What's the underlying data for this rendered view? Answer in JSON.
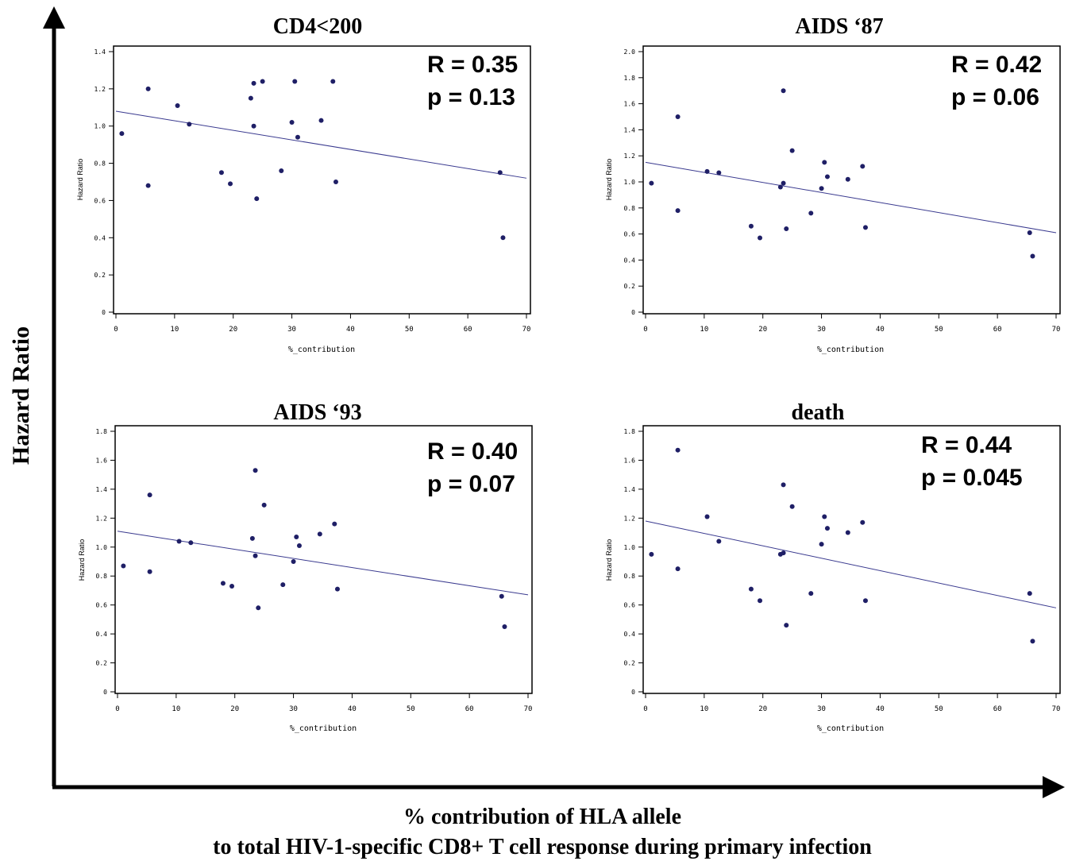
{
  "figure": {
    "ylabel": "Hazard Ratio",
    "xlabel_line1": "% contribution of HLA allele",
    "xlabel_line2": "to total HIV-1-specific CD8+ T cell response during primary infection"
  },
  "chart_data": [
    {
      "type": "scatter",
      "title": "CD4<200",
      "xlabel": "%_contribution",
      "ylabel": "Hazard Ratio",
      "xlim": [
        0,
        70
      ],
      "ylim": [
        0,
        1.4
      ],
      "xticks": [
        0,
        10,
        20,
        30,
        40,
        50,
        60,
        70
      ],
      "yticks": [
        0,
        0.2,
        0.4,
        0.6,
        0.8,
        1.0,
        1.2,
        1.4
      ],
      "ytick_labels": [
        "0",
        "0.2",
        "0.4",
        "0.6",
        "0.8",
        "1.0",
        "1.2",
        "1.4"
      ],
      "stats": {
        "r": "R = 0.35",
        "p": "p = 0.13"
      },
      "fit_line": [
        [
          0,
          1.08
        ],
        [
          70,
          0.72
        ]
      ],
      "points": [
        [
          1,
          0.96
        ],
        [
          5.5,
          1.2
        ],
        [
          5.5,
          0.68
        ],
        [
          10.5,
          1.11
        ],
        [
          12.5,
          1.01
        ],
        [
          18,
          0.75
        ],
        [
          19.5,
          0.69
        ],
        [
          23,
          1.15
        ],
        [
          23.5,
          1.23
        ],
        [
          23.5,
          1.0
        ],
        [
          24,
          0.61
        ],
        [
          25,
          1.24
        ],
        [
          28.2,
          0.76
        ],
        [
          30,
          1.02
        ],
        [
          30.5,
          1.24
        ],
        [
          31,
          0.94
        ],
        [
          35,
          1.03
        ],
        [
          37,
          1.24
        ],
        [
          37.5,
          0.7
        ],
        [
          65.5,
          0.75
        ],
        [
          66,
          0.4
        ]
      ]
    },
    {
      "type": "scatter",
      "title": "AIDS ‘87",
      "xlabel": "%_contribution",
      "ylabel": "Hazard Ratio",
      "xlim": [
        0,
        70
      ],
      "ylim": [
        0,
        2.0
      ],
      "xticks": [
        0,
        10,
        20,
        30,
        40,
        50,
        60,
        70
      ],
      "yticks": [
        0,
        0.2,
        0.4,
        0.6,
        0.8,
        1.0,
        1.2,
        1.4,
        1.6,
        1.8,
        2.0
      ],
      "ytick_labels": [
        "0",
        "0.2",
        "0.4",
        "0.6",
        "0.8",
        "1.0",
        "1.2",
        "1.4",
        "1.6",
        "1.8",
        "2.0"
      ],
      "stats": {
        "r": "R = 0.42",
        "p": "p = 0.06"
      },
      "fit_line": [
        [
          0,
          1.15
        ],
        [
          70,
          0.61
        ]
      ],
      "points": [
        [
          1,
          0.99
        ],
        [
          5.5,
          1.5
        ],
        [
          5.5,
          0.78
        ],
        [
          10.5,
          1.08
        ],
        [
          12.5,
          1.07
        ],
        [
          18,
          0.66
        ],
        [
          19.5,
          0.57
        ],
        [
          23,
          0.96
        ],
        [
          23.5,
          0.99
        ],
        [
          23.5,
          1.7
        ],
        [
          24,
          0.64
        ],
        [
          25,
          1.24
        ],
        [
          28.2,
          0.76
        ],
        [
          30,
          0.95
        ],
        [
          30.5,
          1.15
        ],
        [
          31,
          1.04
        ],
        [
          34.5,
          1.02
        ],
        [
          37,
          1.12
        ],
        [
          37.5,
          0.65
        ],
        [
          65.5,
          0.61
        ],
        [
          66,
          0.43
        ]
      ]
    },
    {
      "type": "scatter",
      "title": "AIDS ‘93",
      "xlabel": "%_contribution",
      "ylabel": "Hazard Ratio",
      "xlim": [
        0,
        70
      ],
      "ylim": [
        0,
        1.8
      ],
      "xticks": [
        0,
        10,
        20,
        30,
        40,
        50,
        60,
        70
      ],
      "yticks": [
        0,
        0.2,
        0.4,
        0.6,
        0.8,
        1.0,
        1.2,
        1.4,
        1.6,
        1.8
      ],
      "ytick_labels": [
        "0",
        "0.2",
        "0.4",
        "0.6",
        "0.8",
        "1.0",
        "1.2",
        "1.4",
        "1.6",
        "1.8"
      ],
      "stats": {
        "r": "R = 0.40",
        "p": "p = 0.07"
      },
      "fit_line": [
        [
          0,
          1.11
        ],
        [
          70,
          0.67
        ]
      ],
      "points": [
        [
          1,
          0.87
        ],
        [
          5.5,
          1.36
        ],
        [
          5.5,
          0.83
        ],
        [
          10.5,
          1.04
        ],
        [
          12.5,
          1.03
        ],
        [
          18,
          0.75
        ],
        [
          19.5,
          0.73
        ],
        [
          23,
          1.06
        ],
        [
          23.5,
          0.94
        ],
        [
          23.5,
          1.53
        ],
        [
          24,
          0.58
        ],
        [
          25,
          1.29
        ],
        [
          28.2,
          0.74
        ],
        [
          30,
          0.9
        ],
        [
          30.5,
          1.07
        ],
        [
          31,
          1.01
        ],
        [
          34.5,
          1.09
        ],
        [
          37,
          1.16
        ],
        [
          37.5,
          0.71
        ],
        [
          65.5,
          0.66
        ],
        [
          66,
          0.45
        ]
      ]
    },
    {
      "type": "scatter",
      "title": "death",
      "xlabel": "%_contribution",
      "ylabel": "Hazard Ratio",
      "xlim": [
        0,
        70
      ],
      "ylim": [
        0,
        1.8
      ],
      "xticks": [
        0,
        10,
        20,
        30,
        40,
        50,
        60,
        70
      ],
      "yticks": [
        0,
        0.2,
        0.4,
        0.6,
        0.8,
        1.0,
        1.2,
        1.4,
        1.6,
        1.8
      ],
      "ytick_labels": [
        "0",
        "0.2",
        "0.4",
        "0.6",
        "0.8",
        "1.0",
        "1.2",
        "1.4",
        "1.6",
        "1.8"
      ],
      "stats": {
        "r": "R = 0.44",
        "p": "p = 0.045"
      },
      "fit_line": [
        [
          0,
          1.18
        ],
        [
          70,
          0.58
        ]
      ],
      "points": [
        [
          1,
          0.95
        ],
        [
          5.5,
          1.67
        ],
        [
          5.5,
          0.85
        ],
        [
          10.5,
          1.21
        ],
        [
          12.5,
          1.04
        ],
        [
          18,
          0.71
        ],
        [
          19.5,
          0.63
        ],
        [
          23,
          0.95
        ],
        [
          23.5,
          0.96
        ],
        [
          23.5,
          1.43
        ],
        [
          24,
          0.46
        ],
        [
          25,
          1.28
        ],
        [
          28.2,
          0.68
        ],
        [
          30,
          1.02
        ],
        [
          30.5,
          1.21
        ],
        [
          31,
          1.13
        ],
        [
          34.5,
          1.1
        ],
        [
          37,
          1.17
        ],
        [
          37.5,
          0.63
        ],
        [
          65.5,
          0.68
        ],
        [
          66,
          0.35
        ]
      ]
    }
  ]
}
